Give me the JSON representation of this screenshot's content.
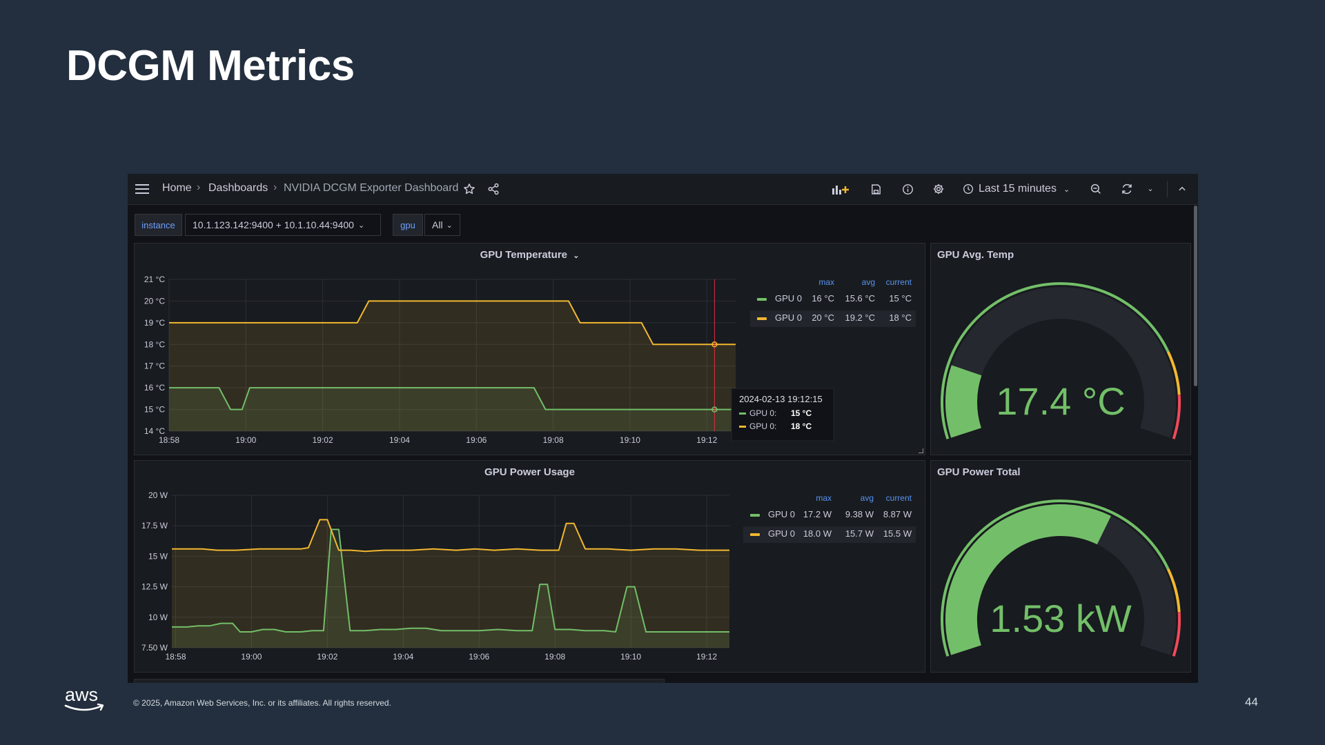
{
  "slide": {
    "title": "DCGM Metrics",
    "footer": "© 2025, Amazon Web Services, Inc. or its affiliates. All rights reserved.",
    "page_number": "44",
    "logo_text": "aws"
  },
  "colors": {
    "slide_bg": "#232f3e",
    "panel_bg": "#181b1f",
    "green": "#73bf69",
    "yellow": "#f2b830",
    "red": "#f2495c",
    "blue_label": "#5794f2"
  },
  "toolbar": {
    "breadcrumbs": [
      "Home",
      "Dashboards",
      "NVIDIA DCGM Exporter Dashboard"
    ],
    "time_range": "Last 15 minutes",
    "icons": [
      "menu-icon",
      "star-icon",
      "share-icon",
      "add-panel-icon",
      "save-icon",
      "info-icon",
      "settings-icon",
      "clock-icon",
      "zoom-out-icon",
      "refresh-icon",
      "chevron-up-icon"
    ]
  },
  "variables": {
    "instance_label": "instance",
    "instance_value": "10.1.123.142:9400 + 10.1.10.44:9400",
    "gpu_label": "gpu",
    "gpu_value": "All"
  },
  "panels": {
    "temp": {
      "title": "GPU Temperature",
      "legend_headers": [
        "max",
        "avg",
        "current"
      ],
      "legend": [
        {
          "name": "GPU 0",
          "max": "16 °C",
          "avg": "15.6 °C",
          "current": "15 °C",
          "color": "#73bf69"
        },
        {
          "name": "GPU 0",
          "max": "20 °C",
          "avg": "19.2 °C",
          "current": "18 °C",
          "color": "#f2b830"
        }
      ],
      "tooltip": {
        "time": "2024-02-13 19:12:15",
        "rows": [
          {
            "label": "GPU 0:",
            "value": "15 °C"
          },
          {
            "label": "GPU 0:",
            "value": "18 °C"
          }
        ]
      }
    },
    "power": {
      "title": "GPU Power Usage",
      "legend_headers": [
        "max",
        "avg",
        "current"
      ],
      "legend": [
        {
          "name": "GPU 0",
          "max": "17.2 W",
          "avg": "9.38 W",
          "current": "8.87 W",
          "color": "#73bf69"
        },
        {
          "name": "GPU 0",
          "max": "18.0 W",
          "avg": "15.7 W",
          "current": "15.5 W",
          "color": "#f2b830"
        }
      ]
    },
    "avg_temp": {
      "title": "GPU Avg. Temp",
      "value": "17.4 °C",
      "fraction": 0.17
    },
    "power_total": {
      "title": "GPU Power Total",
      "value": "1.53 kW",
      "fraction": 0.62
    }
  },
  "chart_data": [
    {
      "type": "line",
      "title": "GPU Temperature",
      "x_ticks": [
        "18:58",
        "19:00",
        "19:02",
        "19:04",
        "19:06",
        "19:08",
        "19:10",
        "19:12"
      ],
      "y_ticks": [
        "14 °C",
        "15 °C",
        "16 °C",
        "17 °C",
        "18 °C",
        "19 °C",
        "20 °C",
        "21 °C"
      ],
      "ylim": [
        14,
        21
      ],
      "xlim_minutes": [
        0,
        14.75
      ],
      "series": [
        {
          "name": "GPU 0",
          "color": "#73bf69",
          "points": [
            [
              0,
              16
            ],
            [
              1.3,
              16
            ],
            [
              1.6,
              15
            ],
            [
              1.9,
              15
            ],
            [
              2.1,
              16
            ],
            [
              9.5,
              16
            ],
            [
              9.8,
              15
            ],
            [
              14.75,
              15
            ]
          ]
        },
        {
          "name": "GPU 0",
          "color": "#f2b830",
          "points": [
            [
              0,
              19
            ],
            [
              4.9,
              19
            ],
            [
              5.2,
              20
            ],
            [
              10.4,
              20
            ],
            [
              10.7,
              19
            ],
            [
              12.3,
              19
            ],
            [
              12.6,
              18
            ],
            [
              14.75,
              18
            ]
          ]
        }
      ]
    },
    {
      "type": "line",
      "title": "GPU Power Usage",
      "x_ticks": [
        "18:58",
        "19:00",
        "19:02",
        "19:04",
        "19:06",
        "19:08",
        "19:10",
        "19:12"
      ],
      "y_ticks": [
        "7.50 W",
        "10 W",
        "12.5 W",
        "15 W",
        "17.5 W",
        "20 W"
      ],
      "ylim": [
        7.5,
        20
      ],
      "xlim_minutes": [
        -0.1,
        14.6
      ],
      "series": [
        {
          "name": "GPU 0",
          "color": "#73bf69",
          "points": [
            [
              -0.1,
              9.2
            ],
            [
              0.3,
              9.2
            ],
            [
              0.6,
              9.3
            ],
            [
              0.9,
              9.3
            ],
            [
              1.2,
              9.5
            ],
            [
              1.5,
              9.5
            ],
            [
              1.7,
              8.8
            ],
            [
              2.0,
              8.8
            ],
            [
              2.3,
              9.0
            ],
            [
              2.6,
              9.0
            ],
            [
              2.9,
              8.8
            ],
            [
              3.3,
              8.8
            ],
            [
              3.6,
              8.9
            ],
            [
              3.9,
              8.9
            ],
            [
              4.1,
              17.2
            ],
            [
              4.3,
              17.2
            ],
            [
              4.6,
              8.9
            ],
            [
              5.0,
              8.9
            ],
            [
              5.4,
              9.0
            ],
            [
              5.8,
              9.0
            ],
            [
              6.2,
              9.1
            ],
            [
              6.6,
              9.1
            ],
            [
              7.0,
              8.9
            ],
            [
              7.5,
              8.9
            ],
            [
              8.0,
              8.9
            ],
            [
              8.5,
              9.0
            ],
            [
              9.0,
              8.9
            ],
            [
              9.4,
              8.9
            ],
            [
              9.6,
              12.7
            ],
            [
              9.8,
              12.7
            ],
            [
              10.0,
              9.0
            ],
            [
              10.4,
              9.0
            ],
            [
              10.8,
              8.9
            ],
            [
              11.3,
              8.9
            ],
            [
              11.6,
              8.8
            ],
            [
              11.9,
              12.5
            ],
            [
              12.1,
              12.5
            ],
            [
              12.4,
              8.8
            ],
            [
              12.8,
              8.8
            ],
            [
              13.3,
              8.8
            ],
            [
              13.8,
              8.8
            ],
            [
              14.6,
              8.8
            ]
          ]
        },
        {
          "name": "GPU 0",
          "color": "#f2b830",
          "points": [
            [
              -0.1,
              15.6
            ],
            [
              0.7,
              15.6
            ],
            [
              1.1,
              15.5
            ],
            [
              1.6,
              15.5
            ],
            [
              2.2,
              15.6
            ],
            [
              3.3,
              15.6
            ],
            [
              3.5,
              15.7
            ],
            [
              3.8,
              18.0
            ],
            [
              4.0,
              18.0
            ],
            [
              4.3,
              15.5
            ],
            [
              4.6,
              15.5
            ],
            [
              5.0,
              15.4
            ],
            [
              5.5,
              15.5
            ],
            [
              6.2,
              15.5
            ],
            [
              6.8,
              15.6
            ],
            [
              7.4,
              15.5
            ],
            [
              7.9,
              15.6
            ],
            [
              8.4,
              15.5
            ],
            [
              9.0,
              15.6
            ],
            [
              9.6,
              15.5
            ],
            [
              10.1,
              15.5
            ],
            [
              10.3,
              17.7
            ],
            [
              10.5,
              17.7
            ],
            [
              10.8,
              15.6
            ],
            [
              11.4,
              15.6
            ],
            [
              12.0,
              15.5
            ],
            [
              12.6,
              15.6
            ],
            [
              13.2,
              15.6
            ],
            [
              13.8,
              15.5
            ],
            [
              14.6,
              15.5
            ]
          ]
        }
      ]
    }
  ]
}
